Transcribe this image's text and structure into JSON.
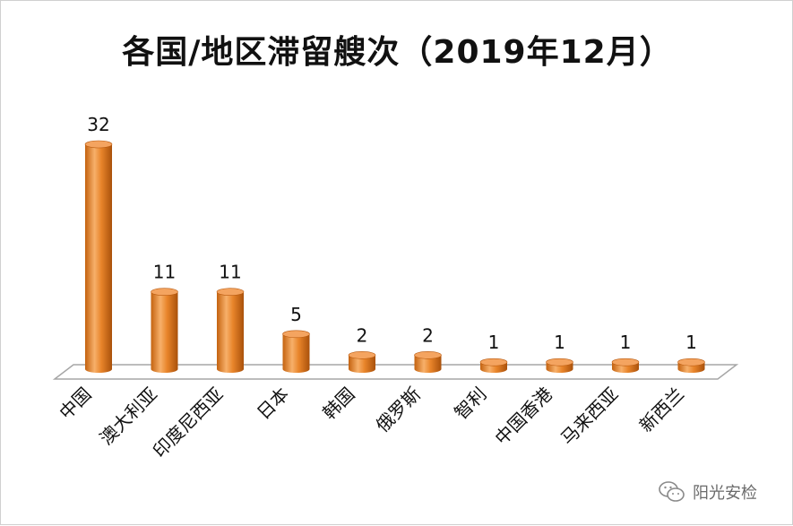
{
  "chart_data": {
    "type": "bar",
    "title": "各国/地区滞留艘次（2019年12月）",
    "categories": [
      "中国",
      "澳大利亚",
      "印度尼西亚",
      "日本",
      "韩国",
      "俄罗斯",
      "智利",
      "中国香港",
      "马来西亚",
      "新西兰"
    ],
    "values": [
      32,
      11,
      11,
      5,
      2,
      2,
      1,
      1,
      1,
      1
    ],
    "xlabel": "",
    "ylabel": "",
    "ylim": [
      0,
      32
    ],
    "grid": false,
    "legend": "none",
    "bar_style": "3d-cylinder",
    "colors": {
      "bar_side": "#e67e22",
      "bar_highlight": "#f9b978",
      "bar_shadow": "#b8580d",
      "bar_top": "#f4a460",
      "floor": "#ffffff",
      "floor_edge": "#a6a6a6"
    }
  },
  "watermark": {
    "icon": "wechat-icon",
    "text": "阳光安检"
  }
}
